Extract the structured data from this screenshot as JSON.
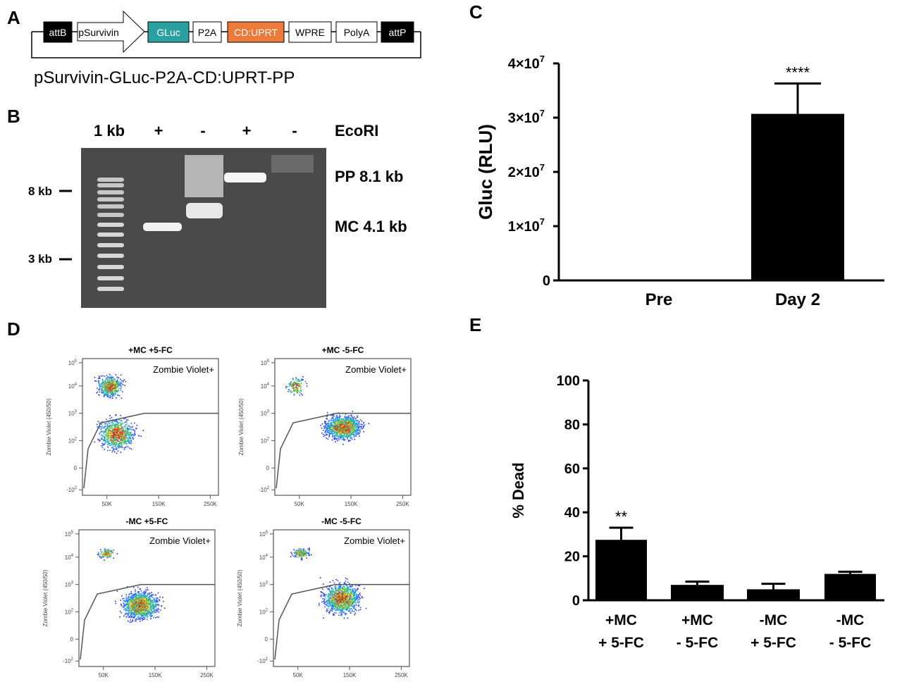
{
  "panel_labels": {
    "a": "A",
    "b": "B",
    "c": "C",
    "d": "D",
    "e": "E"
  },
  "panel_a": {
    "elements": [
      {
        "label": "attB",
        "fill": "#000000",
        "text": "#ffffff"
      },
      {
        "label": "pSurvivin",
        "fill": "#ffffff",
        "text": "#000000",
        "shape": "arrow"
      },
      {
        "label": "GLuc",
        "fill": "#2aa0a0",
        "text": "#ffffff"
      },
      {
        "label": "P2A",
        "fill": "#ffffff",
        "text": "#000000"
      },
      {
        "label": "CD:UPRT",
        "fill": "#ec7a3a",
        "text": "#ffffff"
      },
      {
        "label": "WPRE",
        "fill": "#ffffff",
        "text": "#000000"
      },
      {
        "label": "PolyA",
        "fill": "#ffffff",
        "text": "#000000"
      },
      {
        "label": "attP",
        "fill": "#000000",
        "text": "#ffffff"
      }
    ],
    "construct_name": "pSurvivin-GLuc-P2A-CD:UPRT-PP"
  },
  "panel_b": {
    "header": [
      "1 kb",
      "+",
      "-",
      "+",
      "-",
      "EcoRI"
    ],
    "marker_labels": [
      "8 kb",
      "3 kb"
    ],
    "band_labels": [
      "PP 8.1 kb",
      "MC 4.1 kb"
    ]
  },
  "chart_data": [
    {
      "panel": "C",
      "type": "bar",
      "categories": [
        "Pre",
        "Day 2"
      ],
      "values": [
        0,
        30700000
      ],
      "error": [
        0,
        5600000
      ],
      "significance": [
        "",
        "****"
      ],
      "ylabel": "Gluc (RLU)",
      "ylim": [
        0,
        40000000
      ],
      "yticks": [
        "0",
        "1×10",
        "2×10",
        "3×10",
        "4×10"
      ],
      "ytick_exponent": "7",
      "bar_color": "#000000"
    },
    {
      "panel": "E",
      "type": "bar",
      "categories": [
        [
          "+MC",
          "+ 5-FC"
        ],
        [
          "+MC",
          "- 5-FC"
        ],
        [
          "-MC",
          "+ 5-FC"
        ],
        [
          "-MC",
          "- 5-FC"
        ]
      ],
      "values": [
        27.5,
        7,
        5,
        12
      ],
      "error": [
        5.5,
        1.5,
        2.5,
        1
      ],
      "significance": [
        "**",
        "",
        "",
        ""
      ],
      "ylabel": "% Dead",
      "ylim": [
        0,
        100
      ],
      "yticks": [
        "0",
        "20",
        "40",
        "60",
        "80",
        "100"
      ],
      "bar_color": "#000000"
    }
  ],
  "panel_d": {
    "gate_label": "Zombie Violet+",
    "ylabel": "Zombie Violet (450/50)",
    "xticks": [
      "50K",
      "150K",
      "250K"
    ],
    "yticks": [
      "10",
      "10",
      "10",
      "10",
      "0",
      "-10"
    ],
    "ytick_exps": [
      "5",
      "4",
      "3",
      "2",
      "",
      "2"
    ],
    "plots": [
      {
        "title": "+MC +5-FC"
      },
      {
        "title": "+MC -5-FC"
      },
      {
        "title": "-MC +5-FC"
      },
      {
        "title": "-MC -5-FC"
      }
    ]
  }
}
